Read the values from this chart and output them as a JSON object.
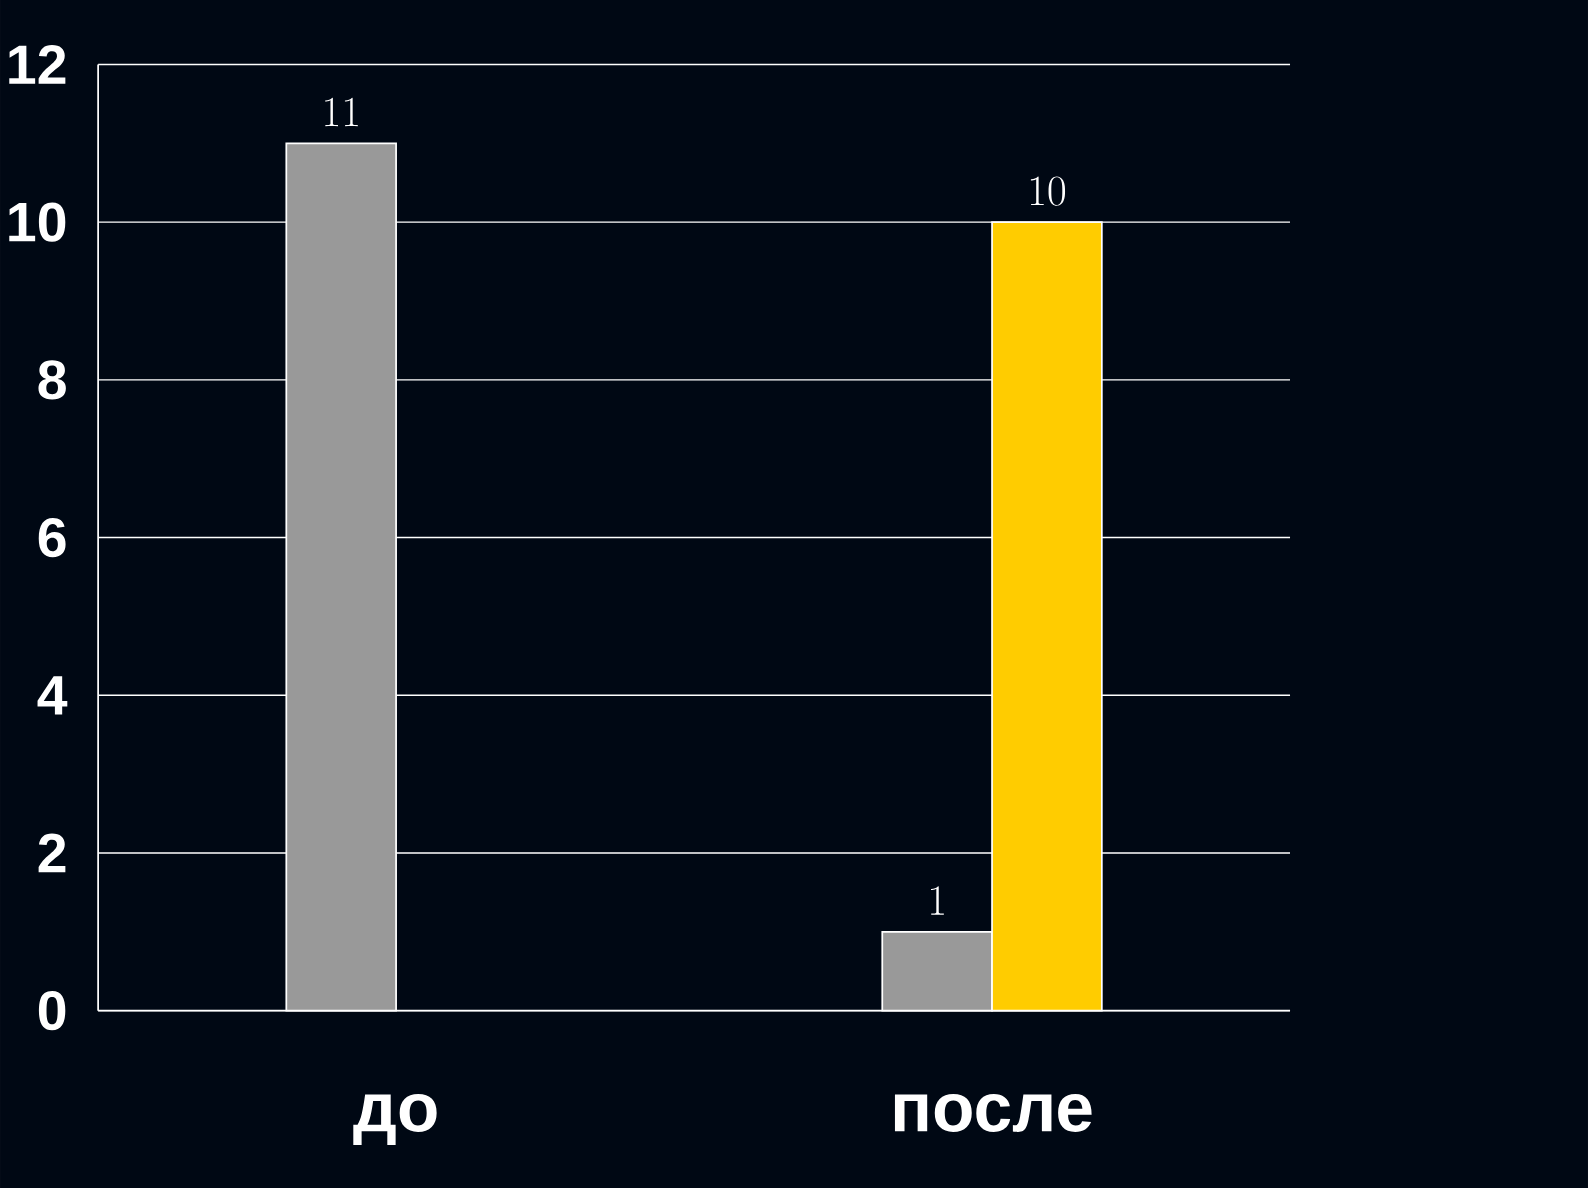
{
  "chart_data": {
    "type": "bar",
    "categories": [
      "до",
      "после"
    ],
    "series": [
      {
        "color": "#999999",
        "values": [
          11,
          1
        ]
      },
      {
        "color": "#ffcc00",
        "values": [
          null,
          10
        ]
      }
    ],
    "ylim": [
      0,
      12
    ],
    "yticks": [
      0,
      2,
      4,
      6,
      8,
      10,
      12
    ],
    "grid": "y",
    "data_labels": true
  }
}
